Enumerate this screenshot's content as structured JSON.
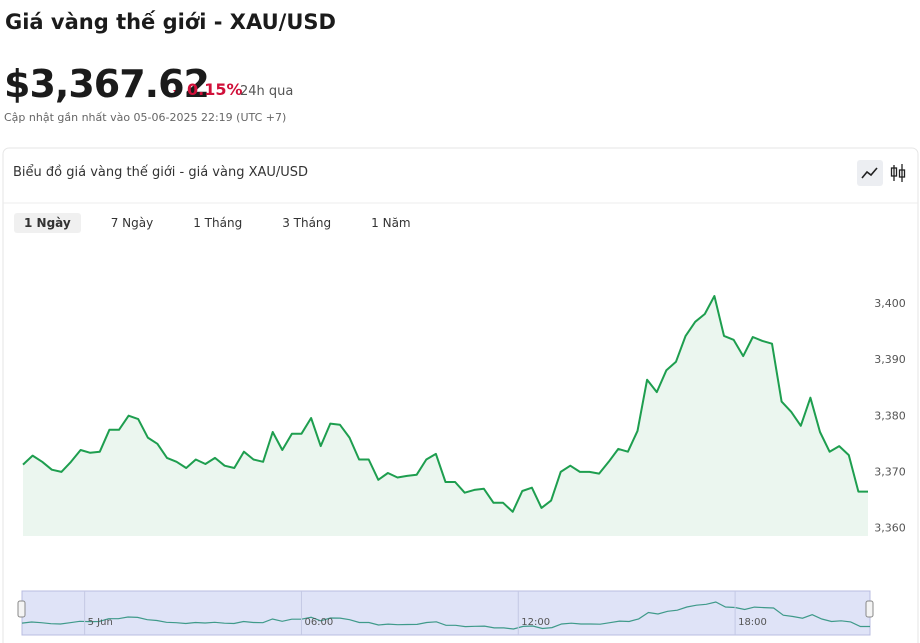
{
  "header": {
    "title": "Giá vàng thế giới - XAU/USD",
    "price": "$3,367.62",
    "change": "0.15%",
    "period": "24h qua",
    "updated": "Cập nhật gần nhất vào 05-06-2025 22:19 (UTC +7)"
  },
  "card": {
    "title": "Biểu đồ giá vàng thế giới - giá vàng XAU/USD",
    "tabs": [
      "1 Ngày",
      "7 Ngày",
      "1 Tháng",
      "3 Tháng",
      "1 Năm"
    ],
    "active_tab": 0
  },
  "chart_data": {
    "type": "area",
    "color": "#1e9e4f",
    "x": [
      -104,
      -88,
      -72,
      -56,
      -40,
      -24,
      -8,
      8,
      24,
      40,
      56,
      72,
      88,
      104,
      120,
      136,
      152,
      168,
      184,
      200,
      216,
      232,
      248,
      264,
      280,
      296,
      312,
      328,
      344,
      360,
      376,
      392,
      408,
      424,
      440,
      456,
      472,
      488,
      504,
      520,
      536,
      552,
      568,
      584,
      600,
      616,
      632,
      648,
      664,
      680,
      696,
      712,
      728,
      744,
      760,
      776,
      792,
      808,
      824,
      840,
      856,
      872,
      888,
      904,
      920,
      936,
      952,
      968,
      984,
      1000,
      1016,
      1032,
      1048,
      1064,
      1080,
      1096,
      1112,
      1128,
      1144,
      1160,
      1176,
      1192,
      1208,
      1224,
      1240,
      1256,
      1272,
      1288,
      1304
    ],
    "values": [
      3371.4,
      3373.0,
      3371.9,
      3370.5,
      3370.1,
      3371.9,
      3374.0,
      3373.5,
      3373.7,
      3377.6,
      3377.6,
      3380.1,
      3379.5,
      3376.2,
      3375.1,
      3372.6,
      3371.9,
      3370.8,
      3372.3,
      3371.5,
      3372.6,
      3371.2,
      3370.8,
      3373.7,
      3372.3,
      3371.9,
      3377.2,
      3374.0,
      3376.9,
      3376.9,
      3379.7,
      3374.7,
      3378.7,
      3378.5,
      3376.2,
      3372.3,
      3372.3,
      3368.7,
      3369.9,
      3369.1,
      3369.4,
      3369.6,
      3372.3,
      3373.3,
      3368.3,
      3368.3,
      3366.4,
      3366.9,
      3367.1,
      3364.6,
      3364.6,
      3363.0,
      3366.7,
      3367.3,
      3363.7,
      3365.0,
      3370.1,
      3371.2,
      3370.1,
      3370.1,
      3369.8,
      3371.9,
      3374.2,
      3373.7,
      3377.4,
      3386.5,
      3384.3,
      3388.2,
      3389.7,
      3394.3,
      3396.8,
      3398.2,
      3401.4,
      3394.3,
      3393.6,
      3390.7,
      3394.1,
      3393.4,
      3392.9,
      3382.6,
      3380.8,
      3378.3,
      3383.3,
      3377.2,
      3373.7,
      3374.7,
      3373.1,
      3366.6,
      3366.6
    ],
    "xlim": [
      -104,
      1304
    ],
    "xticks": [
      {
        "value": 0,
        "label": "5 Jun"
      },
      {
        "value": 360,
        "label": "06:00"
      },
      {
        "value": 720,
        "label": "12:00"
      },
      {
        "value": 1080,
        "label": "18:00"
      }
    ],
    "ylim": [
      3358.7,
      3411
    ],
    "yticks": [
      {
        "value": 3360,
        "label": "3,360"
      },
      {
        "value": 3370,
        "label": "3,370"
      },
      {
        "value": 3380,
        "label": "3,380"
      },
      {
        "value": 3390,
        "label": "3,390"
      },
      {
        "value": 3400,
        "label": "3,400"
      }
    ]
  }
}
